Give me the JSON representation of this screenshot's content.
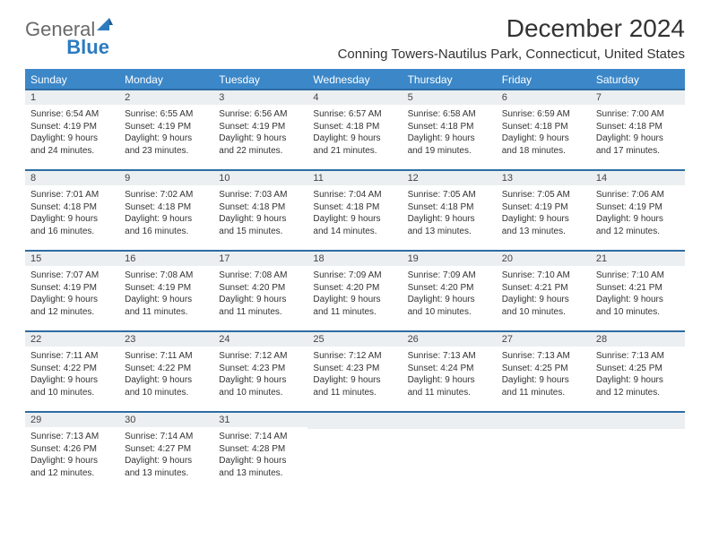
{
  "logo": {
    "text1": "General",
    "text2": "Blue"
  },
  "title": "December 2024",
  "location": "Conning Towers-Nautilus Park, Connecticut, United States",
  "colors": {
    "header_bg": "#3b87c8",
    "header_text": "#ffffff",
    "row_border": "#2e6ca3",
    "daynum_bg": "#eceff1",
    "logo_gray": "#6a6a6a",
    "logo_blue": "#2d7bbf",
    "page_bg": "#ffffff",
    "text": "#333333"
  },
  "fonts": {
    "title_size": 28,
    "location_size": 15,
    "header_size": 12,
    "daynum_size": 11,
    "body_size": 10
  },
  "weekdays": [
    "Sunday",
    "Monday",
    "Tuesday",
    "Wednesday",
    "Thursday",
    "Friday",
    "Saturday"
  ],
  "weeks": [
    [
      {
        "day": "1",
        "sunrise": "Sunrise: 6:54 AM",
        "sunset": "Sunset: 4:19 PM",
        "daylight": "Daylight: 9 hours and 24 minutes."
      },
      {
        "day": "2",
        "sunrise": "Sunrise: 6:55 AM",
        "sunset": "Sunset: 4:19 PM",
        "daylight": "Daylight: 9 hours and 23 minutes."
      },
      {
        "day": "3",
        "sunrise": "Sunrise: 6:56 AM",
        "sunset": "Sunset: 4:19 PM",
        "daylight": "Daylight: 9 hours and 22 minutes."
      },
      {
        "day": "4",
        "sunrise": "Sunrise: 6:57 AM",
        "sunset": "Sunset: 4:18 PM",
        "daylight": "Daylight: 9 hours and 21 minutes."
      },
      {
        "day": "5",
        "sunrise": "Sunrise: 6:58 AM",
        "sunset": "Sunset: 4:18 PM",
        "daylight": "Daylight: 9 hours and 19 minutes."
      },
      {
        "day": "6",
        "sunrise": "Sunrise: 6:59 AM",
        "sunset": "Sunset: 4:18 PM",
        "daylight": "Daylight: 9 hours and 18 minutes."
      },
      {
        "day": "7",
        "sunrise": "Sunrise: 7:00 AM",
        "sunset": "Sunset: 4:18 PM",
        "daylight": "Daylight: 9 hours and 17 minutes."
      }
    ],
    [
      {
        "day": "8",
        "sunrise": "Sunrise: 7:01 AM",
        "sunset": "Sunset: 4:18 PM",
        "daylight": "Daylight: 9 hours and 16 minutes."
      },
      {
        "day": "9",
        "sunrise": "Sunrise: 7:02 AM",
        "sunset": "Sunset: 4:18 PM",
        "daylight": "Daylight: 9 hours and 16 minutes."
      },
      {
        "day": "10",
        "sunrise": "Sunrise: 7:03 AM",
        "sunset": "Sunset: 4:18 PM",
        "daylight": "Daylight: 9 hours and 15 minutes."
      },
      {
        "day": "11",
        "sunrise": "Sunrise: 7:04 AM",
        "sunset": "Sunset: 4:18 PM",
        "daylight": "Daylight: 9 hours and 14 minutes."
      },
      {
        "day": "12",
        "sunrise": "Sunrise: 7:05 AM",
        "sunset": "Sunset: 4:18 PM",
        "daylight": "Daylight: 9 hours and 13 minutes."
      },
      {
        "day": "13",
        "sunrise": "Sunrise: 7:05 AM",
        "sunset": "Sunset: 4:19 PM",
        "daylight": "Daylight: 9 hours and 13 minutes."
      },
      {
        "day": "14",
        "sunrise": "Sunrise: 7:06 AM",
        "sunset": "Sunset: 4:19 PM",
        "daylight": "Daylight: 9 hours and 12 minutes."
      }
    ],
    [
      {
        "day": "15",
        "sunrise": "Sunrise: 7:07 AM",
        "sunset": "Sunset: 4:19 PM",
        "daylight": "Daylight: 9 hours and 12 minutes."
      },
      {
        "day": "16",
        "sunrise": "Sunrise: 7:08 AM",
        "sunset": "Sunset: 4:19 PM",
        "daylight": "Daylight: 9 hours and 11 minutes."
      },
      {
        "day": "17",
        "sunrise": "Sunrise: 7:08 AM",
        "sunset": "Sunset: 4:20 PM",
        "daylight": "Daylight: 9 hours and 11 minutes."
      },
      {
        "day": "18",
        "sunrise": "Sunrise: 7:09 AM",
        "sunset": "Sunset: 4:20 PM",
        "daylight": "Daylight: 9 hours and 11 minutes."
      },
      {
        "day": "19",
        "sunrise": "Sunrise: 7:09 AM",
        "sunset": "Sunset: 4:20 PM",
        "daylight": "Daylight: 9 hours and 10 minutes."
      },
      {
        "day": "20",
        "sunrise": "Sunrise: 7:10 AM",
        "sunset": "Sunset: 4:21 PM",
        "daylight": "Daylight: 9 hours and 10 minutes."
      },
      {
        "day": "21",
        "sunrise": "Sunrise: 7:10 AM",
        "sunset": "Sunset: 4:21 PM",
        "daylight": "Daylight: 9 hours and 10 minutes."
      }
    ],
    [
      {
        "day": "22",
        "sunrise": "Sunrise: 7:11 AM",
        "sunset": "Sunset: 4:22 PM",
        "daylight": "Daylight: 9 hours and 10 minutes."
      },
      {
        "day": "23",
        "sunrise": "Sunrise: 7:11 AM",
        "sunset": "Sunset: 4:22 PM",
        "daylight": "Daylight: 9 hours and 10 minutes."
      },
      {
        "day": "24",
        "sunrise": "Sunrise: 7:12 AM",
        "sunset": "Sunset: 4:23 PM",
        "daylight": "Daylight: 9 hours and 10 minutes."
      },
      {
        "day": "25",
        "sunrise": "Sunrise: 7:12 AM",
        "sunset": "Sunset: 4:23 PM",
        "daylight": "Daylight: 9 hours and 11 minutes."
      },
      {
        "day": "26",
        "sunrise": "Sunrise: 7:13 AM",
        "sunset": "Sunset: 4:24 PM",
        "daylight": "Daylight: 9 hours and 11 minutes."
      },
      {
        "day": "27",
        "sunrise": "Sunrise: 7:13 AM",
        "sunset": "Sunset: 4:25 PM",
        "daylight": "Daylight: 9 hours and 11 minutes."
      },
      {
        "day": "28",
        "sunrise": "Sunrise: 7:13 AM",
        "sunset": "Sunset: 4:25 PM",
        "daylight": "Daylight: 9 hours and 12 minutes."
      }
    ],
    [
      {
        "day": "29",
        "sunrise": "Sunrise: 7:13 AM",
        "sunset": "Sunset: 4:26 PM",
        "daylight": "Daylight: 9 hours and 12 minutes."
      },
      {
        "day": "30",
        "sunrise": "Sunrise: 7:14 AM",
        "sunset": "Sunset: 4:27 PM",
        "daylight": "Daylight: 9 hours and 13 minutes."
      },
      {
        "day": "31",
        "sunrise": "Sunrise: 7:14 AM",
        "sunset": "Sunset: 4:28 PM",
        "daylight": "Daylight: 9 hours and 13 minutes."
      },
      null,
      null,
      null,
      null
    ]
  ]
}
